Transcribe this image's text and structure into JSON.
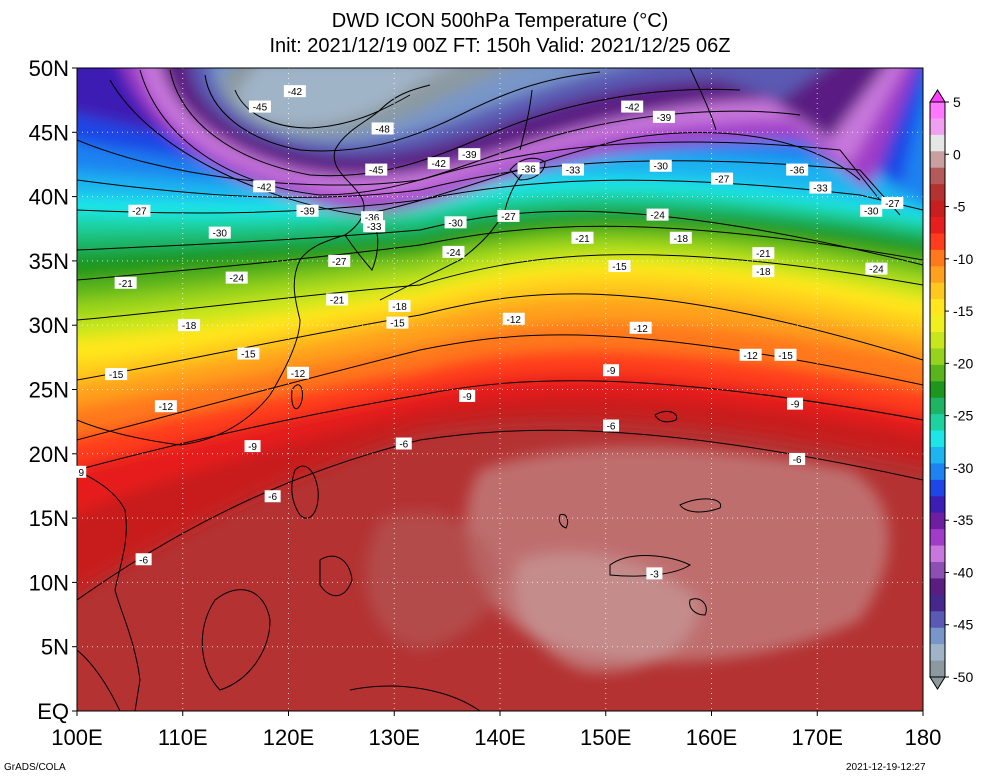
{
  "title": {
    "line1": "DWD ICON 500hPa Temperature (°C)",
    "line2": "Init: 2021/12/19 00Z  FT: 150h  Valid: 2021/12/25 06Z"
  },
  "axes": {
    "x_ticks": [
      "100E",
      "110E",
      "120E",
      "130E",
      "140E",
      "150E",
      "160E",
      "170E",
      "180"
    ],
    "y_ticks": [
      "EQ",
      "5N",
      "10N",
      "15N",
      "20N",
      "25N",
      "30N",
      "35N",
      "40N",
      "45N",
      "50N"
    ],
    "lon_range": [
      100,
      180
    ],
    "lat_range": [
      0,
      50
    ],
    "grid": true
  },
  "colorbar": {
    "labels": [
      "5",
      "0",
      "-5",
      "-10",
      "-15",
      "-20",
      "-25",
      "-30",
      "-35",
      "-40",
      "-45",
      "-50"
    ],
    "range": [
      -50,
      5
    ],
    "colors": [
      "#ff78ff",
      "#f0a0f0",
      "#e6e6e6",
      "#c8a0a0",
      "#b45a5a",
      "#b43232",
      "#c81e1e",
      "#e61e1e",
      "#ff3c1e",
      "#ff781e",
      "#ffa01e",
      "#ffc81e",
      "#ffe61e",
      "#f0f01e",
      "#c8e61e",
      "#96d21e",
      "#5ab41e",
      "#1e961e",
      "#1eb464",
      "#1ed2a0",
      "#1ee6e6",
      "#1eb4f0",
      "#1e82f0",
      "#1e46e6",
      "#3c1eb4",
      "#6e1ea0",
      "#a03cc8",
      "#c878dc",
      "#8c50b4",
      "#5a1e82",
      "#46288c",
      "#5a5ab4",
      "#7896c8",
      "#a0b4c8",
      "#8c9aa0"
    ]
  },
  "field": {
    "variable": "500hPa temperature",
    "unit": "°C",
    "contour_labels": [
      {
        "text": "-42",
        "lon": 120.6,
        "lat": 48.2
      },
      {
        "text": "-45",
        "lon": 117.3,
        "lat": 47.0
      },
      {
        "text": "-48",
        "lon": 128.9,
        "lat": 45.3
      },
      {
        "text": "-42",
        "lon": 152.5,
        "lat": 47.0
      },
      {
        "text": "-39",
        "lon": 155.5,
        "lat": 46.2
      },
      {
        "text": "-39",
        "lon": 137.1,
        "lat": 43.3
      },
      {
        "text": "-42",
        "lon": 134.2,
        "lat": 42.6
      },
      {
        "text": "-45",
        "lon": 128.3,
        "lat": 42.1
      },
      {
        "text": "-36",
        "lon": 142.7,
        "lat": 42.2
      },
      {
        "text": "-33",
        "lon": 146.9,
        "lat": 42.1
      },
      {
        "text": "-30",
        "lon": 155.2,
        "lat": 42.4
      },
      {
        "text": "-27",
        "lon": 161.0,
        "lat": 41.4
      },
      {
        "text": "-36",
        "lon": 168.1,
        "lat": 42.1
      },
      {
        "text": "-33",
        "lon": 170.3,
        "lat": 40.7
      },
      {
        "text": "-27",
        "lon": 177.1,
        "lat": 39.5
      },
      {
        "text": "-30",
        "lon": 175.1,
        "lat": 38.9
      },
      {
        "text": "-42",
        "lon": 117.7,
        "lat": 40.8
      },
      {
        "text": "-39",
        "lon": 121.8,
        "lat": 38.9
      },
      {
        "text": "-27",
        "lon": 105.9,
        "lat": 38.9
      },
      {
        "text": "-36",
        "lon": 127.9,
        "lat": 38.4
      },
      {
        "text": "-33",
        "lon": 128.1,
        "lat": 37.7
      },
      {
        "text": "-30",
        "lon": 135.8,
        "lat": 38.0
      },
      {
        "text": "-27",
        "lon": 140.8,
        "lat": 38.5
      },
      {
        "text": "-24",
        "lon": 154.9,
        "lat": 38.6
      },
      {
        "text": "-30",
        "lon": 113.5,
        "lat": 37.2
      },
      {
        "text": "-21",
        "lon": 147.8,
        "lat": 36.8
      },
      {
        "text": "-18",
        "lon": 157.1,
        "lat": 36.8
      },
      {
        "text": "-24",
        "lon": 135.6,
        "lat": 35.7
      },
      {
        "text": "-21",
        "lon": 164.9,
        "lat": 35.6
      },
      {
        "text": "-27",
        "lon": 124.8,
        "lat": 35.0
      },
      {
        "text": "-15",
        "lon": 151.3,
        "lat": 34.6
      },
      {
        "text": "-18",
        "lon": 164.9,
        "lat": 34.2
      },
      {
        "text": "-24",
        "lon": 175.6,
        "lat": 34.4
      },
      {
        "text": "-24",
        "lon": 115.1,
        "lat": 33.7
      },
      {
        "text": "-21",
        "lon": 104.6,
        "lat": 33.3
      },
      {
        "text": "-21",
        "lon": 124.6,
        "lat": 32.0
      },
      {
        "text": "-18",
        "lon": 130.5,
        "lat": 31.5
      },
      {
        "text": "-15",
        "lon": 130.3,
        "lat": 30.2
      },
      {
        "text": "-12",
        "lon": 141.3,
        "lat": 30.5
      },
      {
        "text": "-18",
        "lon": 110.6,
        "lat": 30.0
      },
      {
        "text": "-12",
        "lon": 153.3,
        "lat": 29.8
      },
      {
        "text": "-15",
        "lon": 116.2,
        "lat": 27.8
      },
      {
        "text": "-12",
        "lon": 163.7,
        "lat": 27.7
      },
      {
        "text": "-15",
        "lon": 167.0,
        "lat": 27.7
      },
      {
        "text": "-9",
        "lon": 150.5,
        "lat": 26.5
      },
      {
        "text": "-15",
        "lon": 103.7,
        "lat": 26.2
      },
      {
        "text": "-12",
        "lon": 120.9,
        "lat": 26.3
      },
      {
        "text": "-9",
        "lon": 136.9,
        "lat": 24.5
      },
      {
        "text": "-12",
        "lon": 108.4,
        "lat": 23.7
      },
      {
        "text": "-9",
        "lon": 167.9,
        "lat": 23.9
      },
      {
        "text": "-6",
        "lon": 150.5,
        "lat": 22.2
      },
      {
        "text": "-6",
        "lon": 130.9,
        "lat": 20.8
      },
      {
        "text": "-9",
        "lon": 116.6,
        "lat": 20.6
      },
      {
        "text": "-6",
        "lon": 168.1,
        "lat": 19.6
      },
      {
        "text": "9",
        "lon": 100.4,
        "lat": 18.6
      },
      {
        "text": "-6",
        "lon": 118.5,
        "lat": 16.7
      },
      {
        "text": "-6",
        "lon": 106.3,
        "lat": 11.8
      },
      {
        "text": "-3",
        "lon": 154.6,
        "lat": 10.7
      }
    ]
  },
  "footer": {
    "left": "GrADS/COLA",
    "right": "2021-12-19-12:27"
  }
}
